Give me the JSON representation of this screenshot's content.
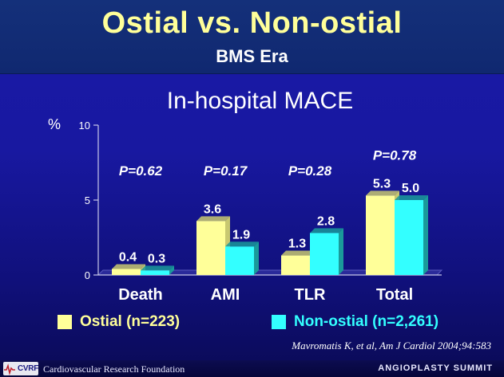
{
  "header": {
    "title": "Ostial vs. Non-ostial",
    "subtitle": "BMS Era"
  },
  "chart_data": {
    "type": "bar",
    "title": "In-hospital MACE",
    "ylabel": "%",
    "ylim": [
      0,
      10
    ],
    "yticks": [
      "0",
      "5",
      "10"
    ],
    "categories": [
      "Death",
      "AMI",
      "TLR",
      "Total"
    ],
    "series": [
      {
        "name": "Ostial (n=223)",
        "values": [
          0.4,
          3.6,
          1.3,
          5.3
        ],
        "labels": [
          "0.4",
          "3.6",
          "1.3",
          "5.3"
        ],
        "color": "#ffff99"
      },
      {
        "name": "Non-ostial (n=2,261)",
        "values": [
          0.3,
          1.9,
          2.8,
          5.0
        ],
        "labels": [
          "0.3",
          "1.9",
          "2.8",
          "5.0"
        ],
        "color": "#33ffff"
      }
    ],
    "pvalues": [
      "P=0.62",
      "P=0.17",
      "P=0.28",
      "P=0.78"
    ],
    "grid": false,
    "legend": "bottom"
  },
  "legend_colors": {
    "ostial": "#ffff99",
    "non_ostial": "#33ffff"
  },
  "citation": "Mavromatis K, et al, Am J Cardiol 2004;94:583",
  "footer": {
    "logo": "CVRF",
    "organization": "Cardiovascular Research Foundation",
    "event": "ANGIOPLASTY SUMMIT"
  }
}
